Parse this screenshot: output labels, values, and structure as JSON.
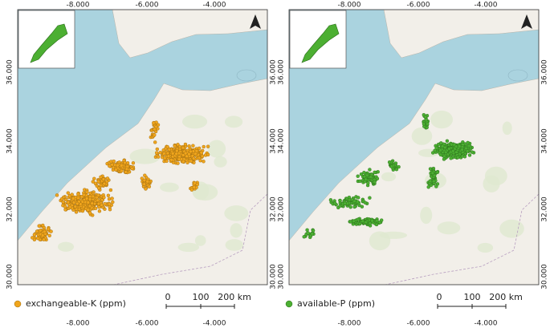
{
  "panels": [
    {
      "legend": "exchangeable-K (ppm)",
      "lon_top": [
        "-8.000",
        "-6.000",
        "-4.000"
      ],
      "lon_bottom": [
        "-8.000",
        "-6.000",
        "-4.000"
      ],
      "lat_left": [
        "36.000",
        "34.000",
        "32.000",
        "30.000"
      ],
      "lat_right": [
        "36.000",
        "34.000",
        "32.000",
        "30.000"
      ],
      "scale": [
        "0",
        "100",
        "200 km"
      ]
    },
    {
      "legend": "available-P (ppm)",
      "lon_top": [
        "-8.000",
        "-6.000",
        "-4.000"
      ],
      "lon_bottom": [
        "-8.000",
        "-6.000",
        "-4.000"
      ],
      "lat_left": [
        "36.000",
        "34.000",
        "32.000",
        "30.000"
      ],
      "lat_right": [
        "36.000",
        "34.000",
        "32.000",
        "30.000"
      ],
      "scale": [
        "0",
        "100",
        "200 km"
      ]
    }
  ]
}
